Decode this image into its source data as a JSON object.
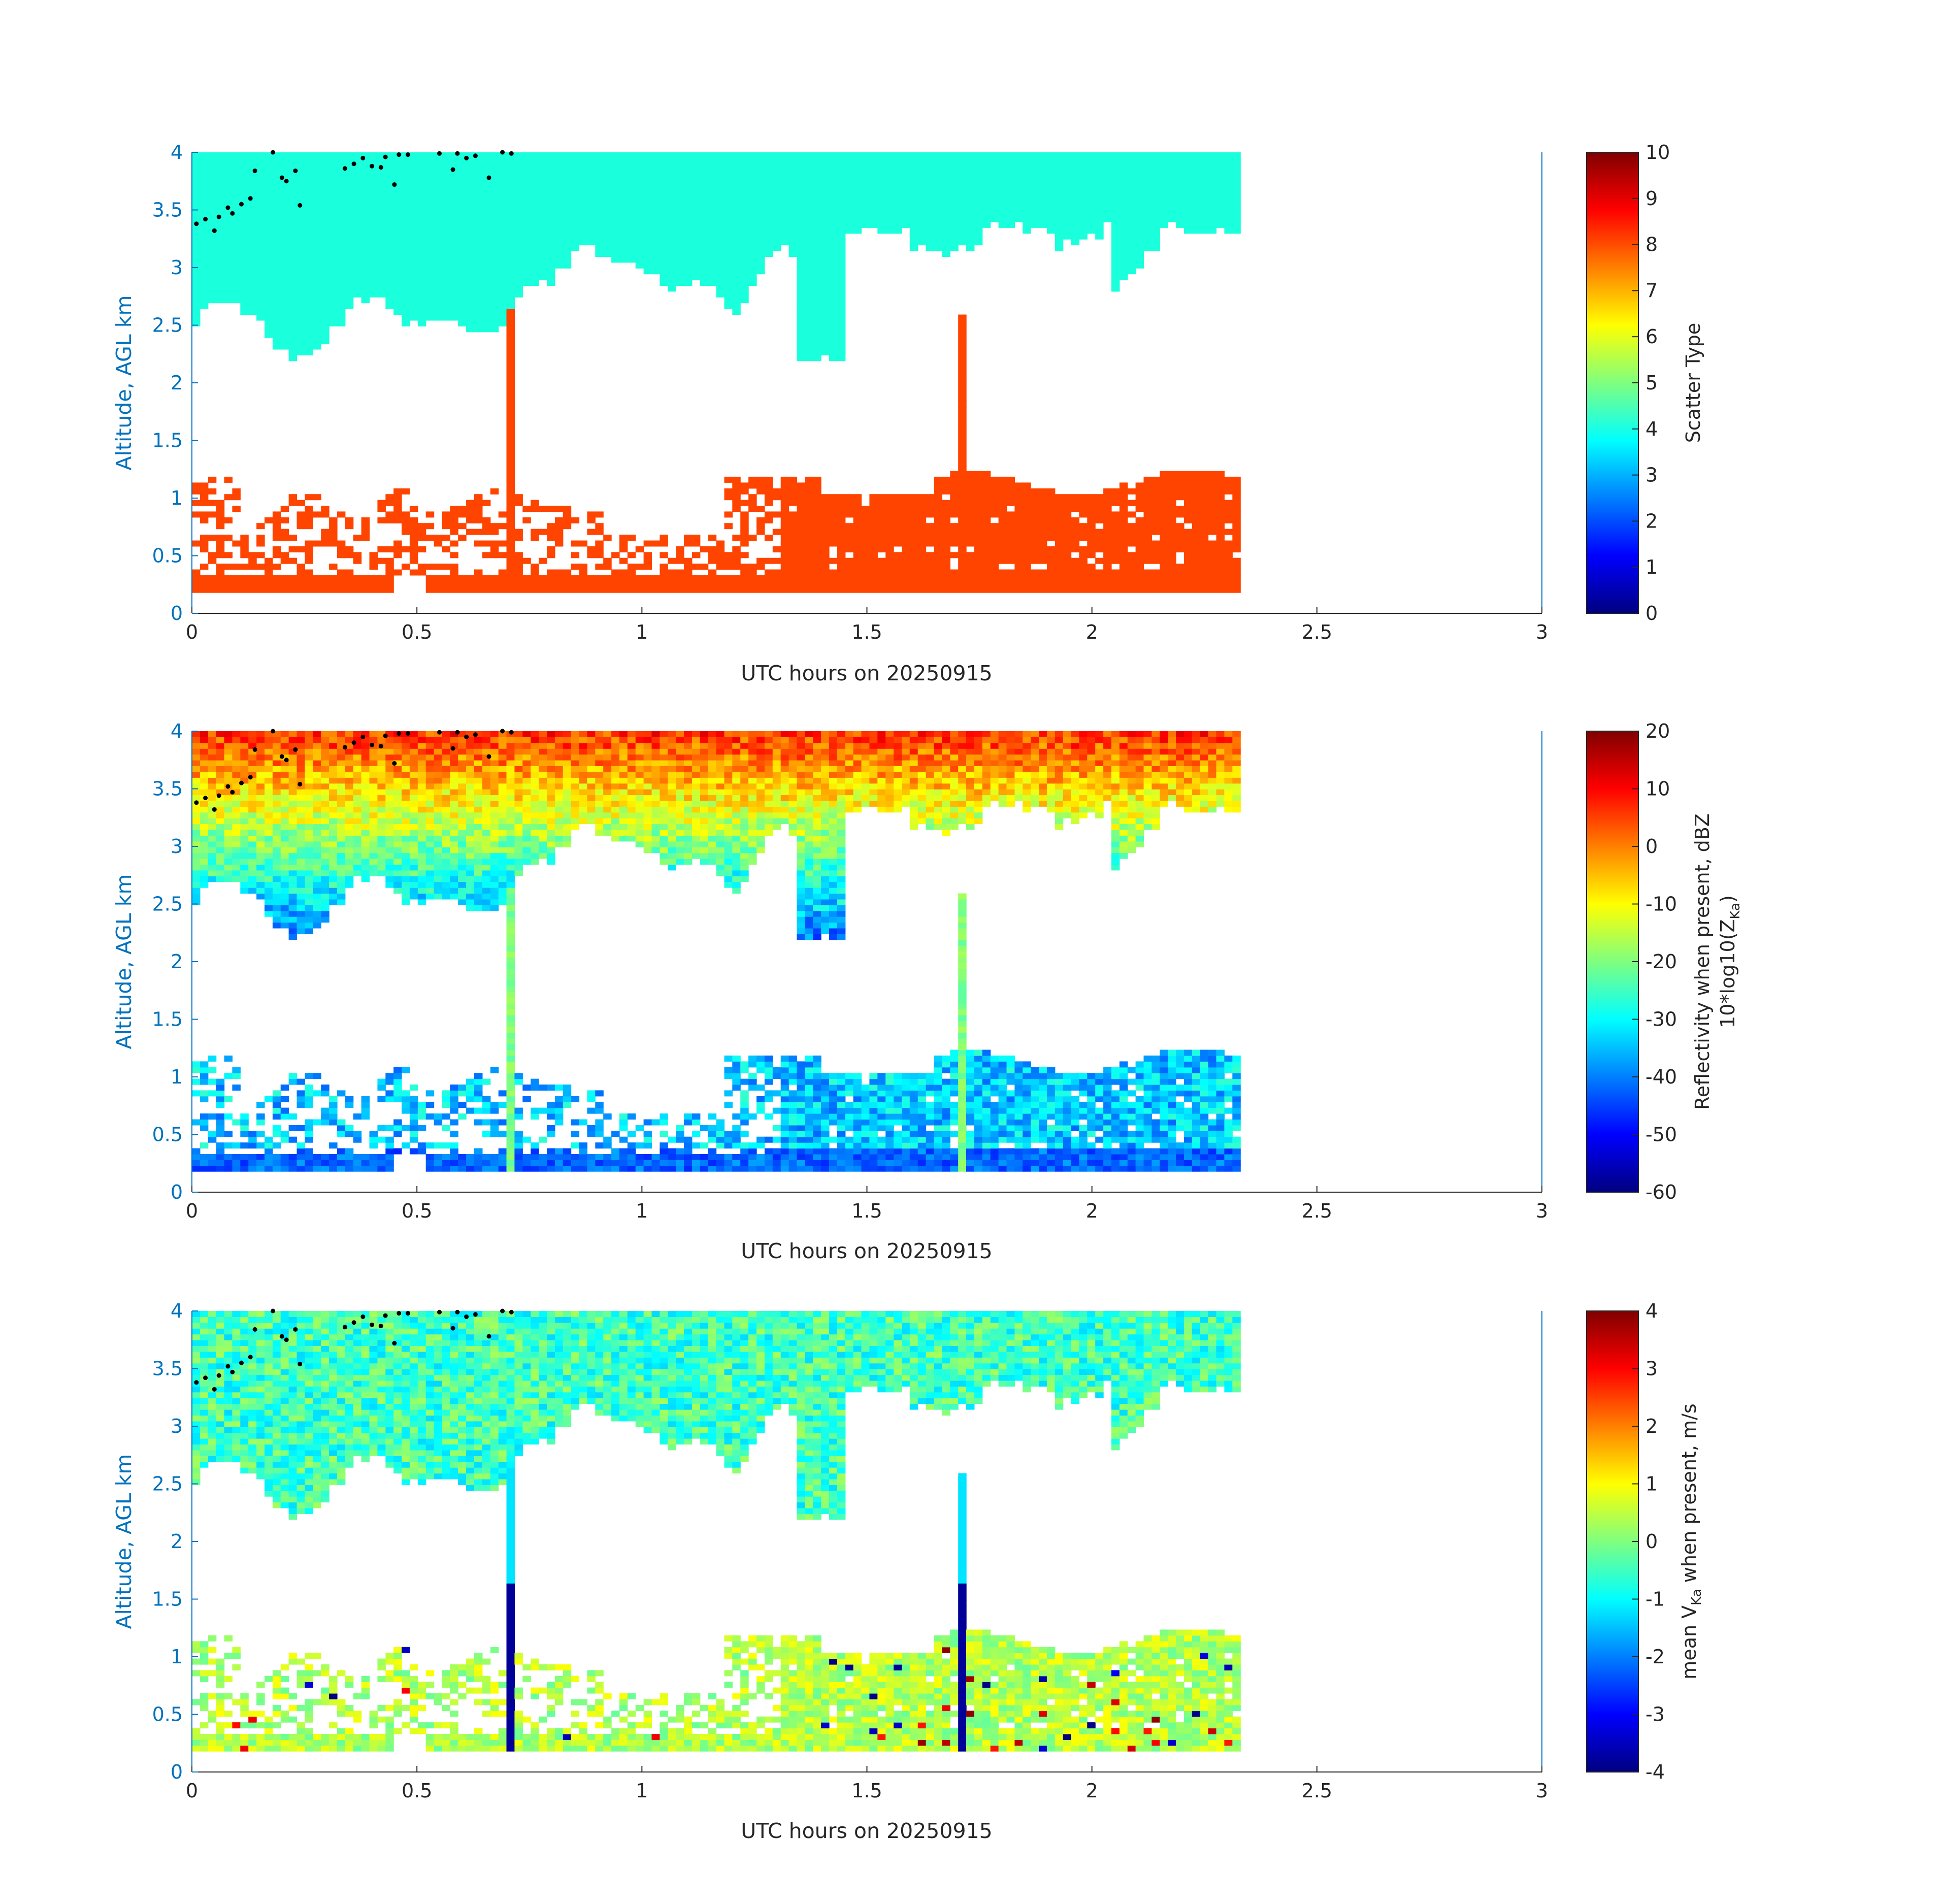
{
  "chart_data": [
    {
      "type": "heatmap",
      "field": "scatter_type",
      "xlabel": "UTC hours on 20250915",
      "ylabel": "Altitude, AGL km",
      "xlim": [
        0,
        3
      ],
      "ylim": [
        0,
        4
      ],
      "x_ticks": [
        "0",
        "0.5",
        "1",
        "1.5",
        "2",
        "2.5",
        "3"
      ],
      "y_ticks": [
        "0",
        "0.5",
        "1",
        "1.5",
        "2",
        "2.5",
        "3",
        "3.5",
        "4"
      ],
      "colorbar": {
        "label": "Scatter Type",
        "label_sub": "",
        "label_suffix": "",
        "label_line2": "",
        "range": [
          0,
          10
        ],
        "ticks": [
          "0",
          "1",
          "2",
          "3",
          "4",
          "5",
          "6",
          "7",
          "8",
          "9",
          "10"
        ],
        "colormap": "jet"
      },
      "data_x_range": [
        0,
        2.33
      ],
      "data_y_range": [
        0.18,
        4.0
      ],
      "categories": {
        "upper_layer_value": 3.6,
        "lower_layer_value": 8.3
      },
      "colors": {
        "upper_layer": "#1affdc",
        "lower_layer": "#ff4400"
      }
    },
    {
      "type": "heatmap",
      "field": "reflectivity",
      "xlabel": "UTC hours on 20250915",
      "ylabel": "Altitude, AGL km",
      "xlim": [
        0,
        3
      ],
      "ylim": [
        0,
        4
      ],
      "x_ticks": [
        "0",
        "0.5",
        "1",
        "1.5",
        "2",
        "2.5",
        "3"
      ],
      "y_ticks": [
        "0",
        "0.5",
        "1",
        "1.5",
        "2",
        "2.5",
        "3",
        "3.5",
        "4"
      ],
      "colorbar": {
        "label": "Reflectivity when present, dBZ",
        "label_line2": "10*log10(Z",
        "label_sub": "Ka",
        "label_suffix": ")",
        "range": [
          -60,
          20
        ],
        "ticks": [
          "-60",
          "-50",
          "-40",
          "-30",
          "-20",
          "-10",
          "0",
          "10",
          "20"
        ],
        "colormap": "jet"
      },
      "data_x_range": [
        0,
        2.33
      ],
      "data_y_range": [
        0.18,
        4.0
      ],
      "typical_values_dbz": {
        "upper_layer_top": 10,
        "upper_layer_base": -35,
        "lower_layer": -38,
        "lower_layer_base": -50
      }
    },
    {
      "type": "heatmap",
      "field": "mean_doppler_velocity",
      "xlabel": "UTC hours on 20250915",
      "ylabel": "Altitude, AGL km",
      "xlim": [
        0,
        3
      ],
      "ylim": [
        0,
        4
      ],
      "x_ticks": [
        "0",
        "0.5",
        "1",
        "1.5",
        "2",
        "2.5",
        "3"
      ],
      "y_ticks": [
        "0",
        "0.5",
        "1",
        "1.5",
        "2",
        "2.5",
        "3",
        "3.5",
        "4"
      ],
      "colorbar": {
        "label": "mean V",
        "label_sub": "Ka",
        "label_suffix": " when present, m/s",
        "label_line2": "",
        "range": [
          -4,
          4
        ],
        "ticks": [
          "-4",
          "-3",
          "-2",
          "-1",
          "0",
          "1",
          "2",
          "3",
          "4"
        ],
        "colormap": "jet"
      },
      "data_x_range": [
        0,
        2.33
      ],
      "data_y_range": [
        0.18,
        4.0
      ],
      "typical_values_ms": {
        "upper_layer": -0.5,
        "lower_layer": 0.4,
        "fall_streak": -3.8
      }
    }
  ],
  "marker_points": [
    [
      0.01,
      3.38
    ],
    [
      0.03,
      3.42
    ],
    [
      0.05,
      3.32
    ],
    [
      0.06,
      3.44
    ],
    [
      0.08,
      3.52
    ],
    [
      0.09,
      3.47
    ],
    [
      0.11,
      3.55
    ],
    [
      0.13,
      3.6
    ],
    [
      0.14,
      3.84
    ],
    [
      0.18,
      4.0
    ],
    [
      0.2,
      3.78
    ],
    [
      0.21,
      3.75
    ],
    [
      0.23,
      3.84
    ],
    [
      0.24,
      3.54
    ],
    [
      0.34,
      3.86
    ],
    [
      0.36,
      3.9
    ],
    [
      0.38,
      3.95
    ],
    [
      0.4,
      3.88
    ],
    [
      0.42,
      3.87
    ],
    [
      0.43,
      3.96
    ],
    [
      0.45,
      3.72
    ],
    [
      0.46,
      3.98
    ],
    [
      0.48,
      3.98
    ],
    [
      0.55,
      3.99
    ],
    [
      0.58,
      3.85
    ],
    [
      0.59,
      3.99
    ],
    [
      0.61,
      3.95
    ],
    [
      0.63,
      3.97
    ],
    [
      0.66,
      3.78
    ],
    [
      0.69,
      4.0
    ],
    [
      0.71,
      3.99
    ]
  ]
}
